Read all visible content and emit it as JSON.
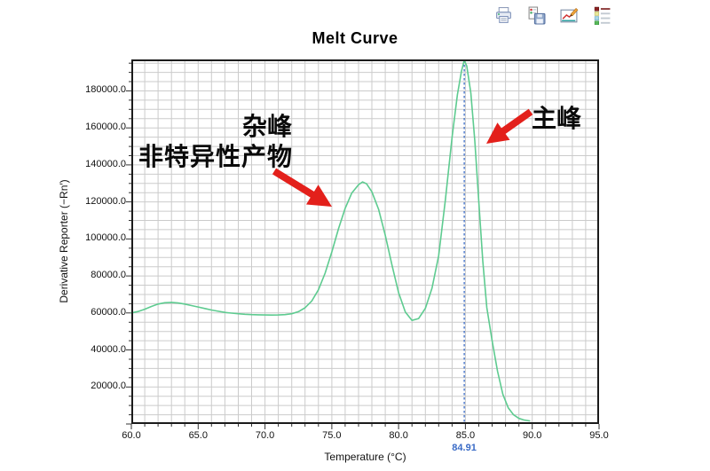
{
  "toolbar": {
    "icons": [
      {
        "name": "print-icon"
      },
      {
        "name": "save-report-icon"
      },
      {
        "name": "edit-chart-icon"
      },
      {
        "name": "legend-icon"
      }
    ]
  },
  "chart_data": {
    "type": "line",
    "title": "Melt Curve",
    "xlabel": "Temperature (°C)",
    "ylabel": "Derivative Reporter (−Rn′)",
    "xlim": [
      60,
      95
    ],
    "ylim": [
      0,
      197000
    ],
    "grid": {
      "on": true,
      "x_step": 1,
      "y_step": 5000,
      "color": "#cbcbcb"
    },
    "x_ticks": [
      {
        "v": 60,
        "label": "60.0"
      },
      {
        "v": 65,
        "label": "65.0"
      },
      {
        "v": 70,
        "label": "70.0"
      },
      {
        "v": 75,
        "label": "75.0"
      },
      {
        "v": 80,
        "label": "80.0"
      },
      {
        "v": 85,
        "label": "85.0"
      },
      {
        "v": 90,
        "label": "90.0"
      },
      {
        "v": 95,
        "label": "95.0"
      }
    ],
    "y_ticks": [
      {
        "v": 20000,
        "label": "20000.0"
      },
      {
        "v": 40000,
        "label": "40000.0"
      },
      {
        "v": 60000,
        "label": "60000.0"
      },
      {
        "v": 80000,
        "label": "80000.0"
      },
      {
        "v": 100000,
        "label": "100000.0"
      },
      {
        "v": 120000,
        "label": "120000.0"
      },
      {
        "v": 140000,
        "label": "140000.0"
      },
      {
        "v": 160000,
        "label": "160000.0"
      },
      {
        "v": 180000,
        "label": "180000.0"
      }
    ],
    "series": [
      {
        "name": "melt-curve",
        "color": "#5ecb90",
        "points": [
          [
            60,
            60000
          ],
          [
            60.5,
            60800
          ],
          [
            61,
            62000
          ],
          [
            61.5,
            63500
          ],
          [
            62,
            64800
          ],
          [
            62.5,
            65500
          ],
          [
            63,
            65700
          ],
          [
            63.5,
            65400
          ],
          [
            64,
            64800
          ],
          [
            64.5,
            64000
          ],
          [
            65,
            63200
          ],
          [
            65.5,
            62400
          ],
          [
            66,
            61600
          ],
          [
            66.5,
            60900
          ],
          [
            67,
            60300
          ],
          [
            67.5,
            59900
          ],
          [
            68,
            59600
          ],
          [
            68.5,
            59300
          ],
          [
            69,
            59100
          ],
          [
            69.5,
            59000
          ],
          [
            70,
            58900
          ],
          [
            70.5,
            58850
          ],
          [
            71,
            58900
          ],
          [
            71.5,
            59100
          ],
          [
            72,
            59600
          ],
          [
            72.5,
            60700
          ],
          [
            73,
            62800
          ],
          [
            73.5,
            66500
          ],
          [
            74,
            72500
          ],
          [
            74.5,
            81500
          ],
          [
            75,
            93000
          ],
          [
            75.5,
            105500
          ],
          [
            76,
            116500
          ],
          [
            76.5,
            124800
          ],
          [
            77,
            129300
          ],
          [
            77.3,
            130800
          ],
          [
            77.6,
            129800
          ],
          [
            78,
            125500
          ],
          [
            78.5,
            116000
          ],
          [
            79,
            102000
          ],
          [
            79.5,
            86000
          ],
          [
            80,
            71000
          ],
          [
            80.5,
            60500
          ],
          [
            81,
            56000
          ],
          [
            81.5,
            57000
          ],
          [
            82,
            62500
          ],
          [
            82.5,
            73500
          ],
          [
            83,
            91000
          ],
          [
            83.5,
            121000
          ],
          [
            84,
            155000
          ],
          [
            84.4,
            178000
          ],
          [
            84.7,
            190500
          ],
          [
            84.91,
            196500
          ],
          [
            85.1,
            193500
          ],
          [
            85.4,
            179000
          ],
          [
            85.7,
            153000
          ],
          [
            86,
            120000
          ],
          [
            86.3,
            88000
          ],
          [
            86.6,
            63000
          ],
          [
            87,
            45000
          ],
          [
            87.4,
            28500
          ],
          [
            87.8,
            16000
          ],
          [
            88.2,
            8800
          ],
          [
            88.6,
            5000
          ],
          [
            89,
            3000
          ],
          [
            89.4,
            2100
          ],
          [
            89.8,
            1700
          ]
        ]
      }
    ],
    "peak_marker": {
      "x": 84.91,
      "label": "84.91",
      "color": "#3a6bc6",
      "style": "dashed"
    }
  },
  "annotations": {
    "secondary_peak_line1": "杂峰",
    "secondary_peak_line2": "非特异性产物",
    "main_peak_label": "主峰",
    "arrow_color": "#e3201b"
  }
}
